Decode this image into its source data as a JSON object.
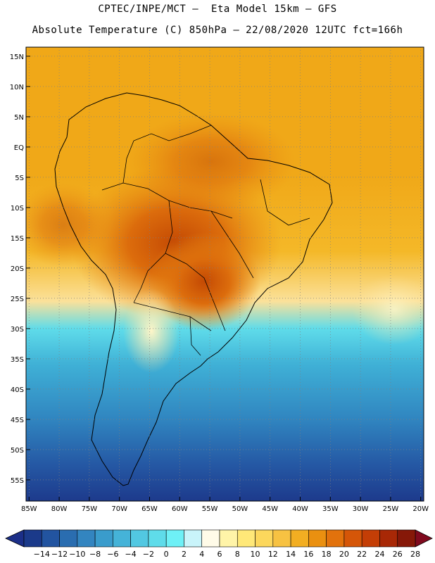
{
  "header": {
    "line1": "CPTEC/INPE/MCT –  Eta Model 15km – GFS",
    "line2": "Absolute Temperature (C) 850hPa – 22/08/2020 12UTC fct=166h"
  },
  "map": {
    "lat_labels": [
      "15N",
      "10N",
      "5N",
      "EQ",
      "5S",
      "10S",
      "15S",
      "20S",
      "25S",
      "30S",
      "35S",
      "40S",
      "45S",
      "50S",
      "55S"
    ],
    "lat_values": [
      15,
      10,
      5,
      0,
      -5,
      -10,
      -15,
      -20,
      -25,
      -30,
      -35,
      -40,
      -45,
      -50,
      -55
    ],
    "lon_labels": [
      "85W",
      "80W",
      "75W",
      "70W",
      "65W",
      "60W",
      "55W",
      "50W",
      "45W",
      "40W",
      "35W",
      "30W",
      "25W",
      "20W"
    ],
    "lon_values": [
      -85,
      -80,
      -75,
      -70,
      -65,
      -60,
      -55,
      -50,
      -45,
      -40,
      -35,
      -30,
      -25,
      -20
    ],
    "extent": {
      "lon_min": -85.5,
      "lon_max": -19.5,
      "lat_max": 16.5,
      "lat_min": -58.5
    },
    "field": "temperature_850hPa_C",
    "color_hot": "#c44a04",
    "color_cold": "#1d3a8c"
  },
  "colorbar": {
    "labels": [
      "-14",
      "-12",
      "-10",
      "-8",
      "-6",
      "-4",
      "-2",
      "0",
      "2",
      "4",
      "6",
      "8",
      "10",
      "12",
      "14",
      "16",
      "18",
      "20",
      "22",
      "24",
      "26",
      "28"
    ],
    "colors": [
      "#1b3a8a",
      "#2254a0",
      "#2a6db0",
      "#3385c0",
      "#3a9ccc",
      "#45b3d8",
      "#52c8e2",
      "#5fdcea",
      "#6ef0f6",
      "#c9f4fa",
      "#fffbe8",
      "#fff4a8",
      "#ffe878",
      "#fcd75c",
      "#f7c242",
      "#f2ae22",
      "#ea9010",
      "#e2720c",
      "#d55608",
      "#c43e06",
      "#a82806",
      "#861808"
    ],
    "low_arrow_color": "#1c2f88",
    "high_arrow_color": "#800a1e"
  }
}
